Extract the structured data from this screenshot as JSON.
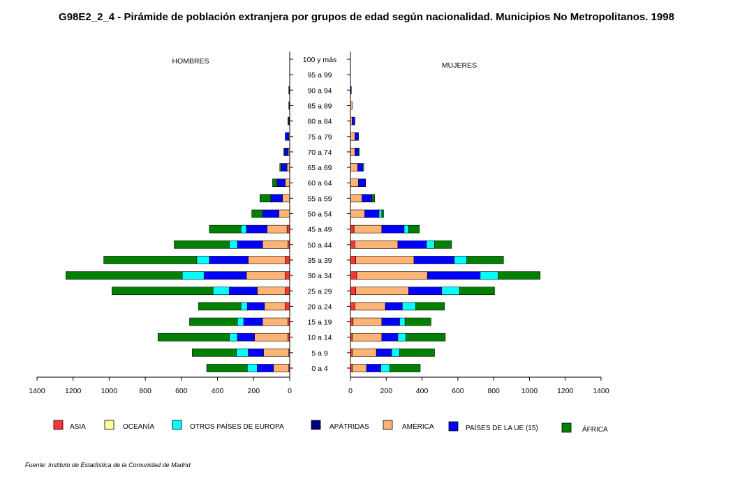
{
  "chart_data": {
    "type": "bar",
    "title": "G98E2_2_4 - Pirámide de población extranjera por grupos de edad según nacionalidad.  Municipios No Metropolitanos. 1998",
    "left_label": "HOMBRES",
    "right_label": "MUJERES",
    "source": "Fuente: Instituto de Estadística de la Comunidad de Madrid",
    "xlim": [
      0,
      1400
    ],
    "xticks": [
      "0",
      "200",
      "400",
      "600",
      "800",
      "1000",
      "1200",
      "1400"
    ],
    "xticks_left": [
      "1400",
      "1200",
      "1000",
      "800",
      "600",
      "400",
      "200",
      "0"
    ],
    "categories": [
      "100 y más",
      "95 a 99",
      "90 a 94",
      "85 a 89",
      "80 a 84",
      "75 a 79",
      "70 a 74",
      "65 a 69",
      "60 a 64",
      "55 a 59",
      "50 a 54",
      "45 a 49",
      "50 a 44",
      "35 a 39",
      "30 a 34",
      "25 a 29",
      "20 a 24",
      "15 a 19",
      "10 a 14",
      "5 a 9",
      "0 a 4"
    ],
    "colors": {
      "ASIA": "#ff3333",
      "OCEANÍA": "#ffff99",
      "OTROS PAÍSES DE EUROPA": "#00ffff",
      "APÁTRIDAS": "#000080",
      "AMÉRICA": "#ffb375",
      "PAÍSES DE LA UE (15)": "#0000ff",
      "ÁFRICA": "#008000"
    },
    "stack_order": [
      "ASIA",
      "OCEANÍA",
      "AMÉRICA",
      "PAÍSES DE LA UE (15)",
      "OTROS PAÍSES DE EUROPA",
      "ÁFRICA",
      "APÁTRIDAS"
    ],
    "hombres": [
      {
        "name": "ASIA",
        "values": [
          0,
          0,
          0,
          0,
          0,
          0,
          0,
          0,
          0,
          0,
          0,
          15,
          10,
          25,
          25,
          25,
          25,
          10,
          10,
          5,
          5
        ]
      },
      {
        "name": "OCEANÍA",
        "values": [
          0,
          0,
          0,
          0,
          0,
          0,
          0,
          0,
          0,
          0,
          0,
          0,
          0,
          0,
          0,
          0,
          0,
          0,
          0,
          0,
          0
        ]
      },
      {
        "name": "AMÉRICA",
        "values": [
          0,
          0,
          0,
          0,
          0,
          5,
          8,
          15,
          25,
          40,
          60,
          110,
          140,
          205,
          215,
          155,
          115,
          140,
          185,
          140,
          85
        ]
      },
      {
        "name": "PAÍSES DE LA UE (15)",
        "values": [
          0,
          0,
          0,
          0,
          5,
          20,
          20,
          30,
          45,
          65,
          90,
          115,
          140,
          215,
          235,
          155,
          95,
          105,
          95,
          85,
          90
        ]
      },
      {
        "name": "OTROS PAÍSES DE EUROPA",
        "values": [
          0,
          0,
          0,
          0,
          0,
          0,
          0,
          0,
          0,
          0,
          0,
          30,
          45,
          70,
          120,
          90,
          35,
          35,
          45,
          65,
          55
        ]
      },
      {
        "name": "ÁFRICA",
        "values": [
          0,
          0,
          0,
          0,
          5,
          0,
          5,
          10,
          25,
          60,
          60,
          175,
          305,
          515,
          645,
          560,
          235,
          265,
          395,
          245,
          225
        ]
      },
      {
        "name": "APÁTRIDAS",
        "values": [
          0,
          0,
          5,
          5,
          0,
          0,
          0,
          0,
          0,
          0,
          0,
          0,
          0,
          0,
          0,
          0,
          0,
          0,
          0,
          0,
          0
        ]
      }
    ],
    "mujeres": [
      {
        "name": "ASIA",
        "values": [
          0,
          0,
          0,
          0,
          0,
          0,
          0,
          0,
          0,
          0,
          0,
          20,
          25,
          30,
          35,
          30,
          25,
          15,
          10,
          10,
          10
        ]
      },
      {
        "name": "OCEANÍA",
        "values": [
          0,
          0,
          0,
          0,
          0,
          0,
          0,
          0,
          0,
          0,
          0,
          0,
          0,
          0,
          0,
          0,
          0,
          0,
          0,
          0,
          0
        ]
      },
      {
        "name": "AMÉRICA",
        "values": [
          0,
          0,
          0,
          10,
          10,
          25,
          25,
          40,
          45,
          65,
          80,
          155,
          240,
          325,
          395,
          295,
          170,
          160,
          165,
          135,
          80
        ]
      },
      {
        "name": "PAÍSES DE LA UE (15)",
        "values": [
          0,
          0,
          5,
          0,
          15,
          20,
          20,
          30,
          40,
          55,
          80,
          125,
          160,
          225,
          295,
          185,
          95,
          100,
          90,
          85,
          80
        ]
      },
      {
        "name": "OTROS PAÍSES DE EUROPA",
        "values": [
          0,
          0,
          0,
          0,
          0,
          0,
          5,
          5,
          0,
          0,
          15,
          25,
          45,
          70,
          100,
          100,
          75,
          30,
          45,
          45,
          50
        ]
      },
      {
        "name": "ÁFRICA",
        "values": [
          0,
          0,
          0,
          0,
          0,
          0,
          0,
          0,
          0,
          15,
          10,
          60,
          95,
          205,
          235,
          195,
          160,
          145,
          220,
          195,
          170
        ]
      },
      {
        "name": "APÁTRIDAS",
        "values": [
          0,
          0,
          0,
          0,
          0,
          0,
          0,
          0,
          0,
          0,
          0,
          0,
          0,
          0,
          0,
          0,
          0,
          0,
          0,
          0,
          0
        ]
      }
    ],
    "legend": {
      "placement": "bottom",
      "entries": [
        "ASIA",
        "OCEANÍA",
        "OTROS PAÍSES DE EUROPA",
        "APÁTRIDAS",
        "AMÉRICA",
        "PAÍSES DE LA UE (15)",
        "ÁFRICA"
      ]
    },
    "grid": false
  }
}
